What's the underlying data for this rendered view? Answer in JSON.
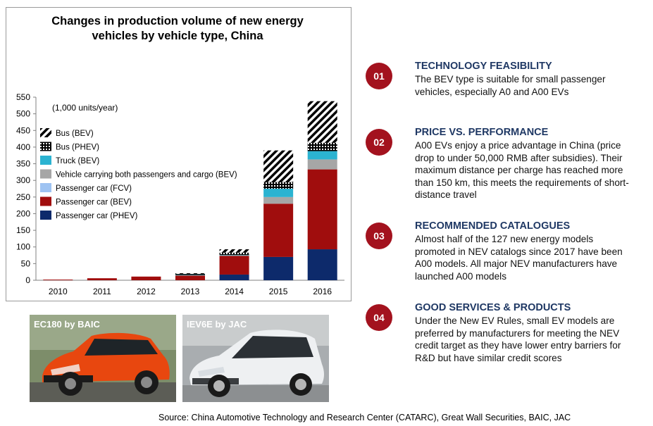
{
  "chart_data": {
    "type": "bar",
    "stacked": true,
    "title_lines": [
      "Changes in production volume of new energy",
      "vehicles by vehicle type, China"
    ],
    "unit_note": "(1,000 units/year)",
    "categories": [
      "2010",
      "2011",
      "2012",
      "2013",
      "2014",
      "2015",
      "2016"
    ],
    "ylim": [
      0,
      550
    ],
    "yticks": [
      0,
      50,
      100,
      150,
      200,
      250,
      300,
      350,
      400,
      450,
      500,
      550
    ],
    "grid": false,
    "legend_position": "top-left",
    "series": [
      {
        "name": "Passenger car (PHEV)",
        "color": "#0d2a6b",
        "pattern": "solid",
        "values": [
          0,
          0,
          0,
          0,
          17,
          70,
          93
        ]
      },
      {
        "name": "Passenger car (BEV)",
        "color": "#a00d0d",
        "pattern": "solid",
        "values": [
          2,
          6,
          11,
          14,
          56,
          160,
          240
        ]
      },
      {
        "name": "Passenger car (FCV)",
        "color": "#9ec3f2",
        "pattern": "solid",
        "values": [
          0,
          0,
          0,
          0,
          0,
          0,
          0
        ]
      },
      {
        "name": "Vehicle carrying both passengers and cargo (BEV)",
        "color": "#a6a6a6",
        "pattern": "solid",
        "values": [
          0,
          0,
          0,
          1,
          2,
          20,
          30
        ]
      },
      {
        "name": "Truck (BEV)",
        "color": "#2bb3d1",
        "pattern": "solid",
        "values": [
          0,
          0,
          0,
          1,
          1,
          25,
          25
        ]
      },
      {
        "name": "Bus (PHEV)",
        "color": "#000000",
        "pattern": "dots",
        "values": [
          0,
          0,
          0,
          3,
          7,
          20,
          25
        ]
      },
      {
        "name": "Bus (BEV)",
        "color": "#000000",
        "pattern": "hatch",
        "values": [
          0,
          0,
          0,
          2,
          10,
          95,
          125
        ]
      }
    ]
  },
  "photos": [
    {
      "label": "EC180 by BAIC",
      "car_color": "#e8470f",
      "bg": "#7d8d6a"
    },
    {
      "label": "IEV6E by JAC",
      "car_color": "#eef0f2",
      "bg": "#a9adb0"
    }
  ],
  "items": [
    {
      "number": "01",
      "title": "TECHNOLOGY FEASIBILITY",
      "lines": [
        "The BEV type is suitable for small passenger",
        "vehicles, especially A0 and A00 EVs"
      ]
    },
    {
      "number": "02",
      "title": "PRICE VS. PERFORMANCE",
      "lines": [
        "A00 EVs enjoy a price advantage in China (price",
        "drop to under 50,000 RMB after subsidies). Their",
        "maximum distance per charge has reached more",
        "than 150 km, this meets the requirements of short-",
        "distance travel"
      ]
    },
    {
      "number": "03",
      "title": "RECOMMENDED CATALOGUES",
      "lines": [
        "Almost half of the 127 new energy models",
        "promoted in NEV catalogs since 2017 have been",
        "A00 models. All major NEV manufacturers have",
        "launched A00 models"
      ]
    },
    {
      "number": "04",
      "title": "GOOD SERVICES & PRODUCTS",
      "lines": [
        "Under the New EV Rules, small EV models are",
        "preferred by manufacturers for meeting the NEV",
        "credit target as they have lower entry barriers for",
        "R&D but have similar credit scores"
      ]
    }
  ],
  "source": "Source: China Automotive Technology and Research Center (CATARC), Great Wall Securities, BAIC, JAC"
}
